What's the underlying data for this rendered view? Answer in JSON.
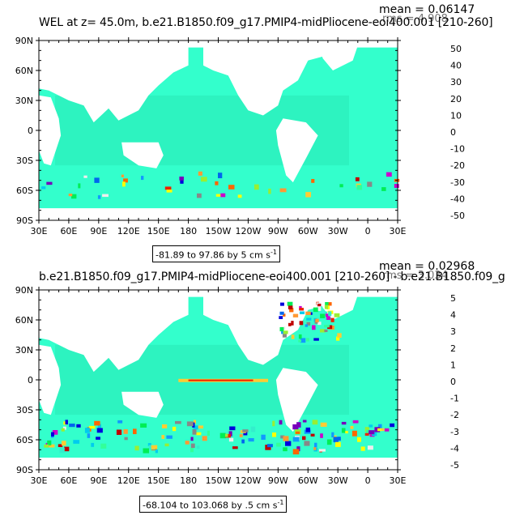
{
  "panels": [
    {
      "title": "WEL at z=  45.0m, b.e21.B1850.f09_g17.PMIP4-midPliocene-eoi400.001 [210-260]",
      "mean_text": "mean = 0.06147",
      "rms_text": "rms = 4.908",
      "range_text": "-81.89 to 97.86 by 5 cm s",
      "range_superscript": "-1",
      "colorbar_labels": [
        "50",
        "40",
        "30",
        "20",
        "10",
        "0",
        "-10",
        "-20",
        "-30",
        "-40",
        "-50"
      ]
    },
    {
      "title": "b.e21.B1850.f09_g17.PMIP4-midPliocene-eoi400.001 [210-260] - b.e21.B1850.f09_g",
      "mean_text": "mean = 0.02968",
      "rms_text": "rms = 3.034",
      "range_text": "-68.104 to 103.068 by .5 cm s",
      "range_superscript": "-1",
      "colorbar_labels": [
        "5",
        "4",
        "3",
        "2",
        "1",
        "0",
        "-1",
        "-2",
        "-3",
        "-4",
        "-5"
      ]
    }
  ],
  "lat_labels": [
    "90N",
    "60N",
    "30N",
    "0",
    "30S",
    "60S",
    "90S"
  ],
  "lon_labels": [
    "30E",
    "60E",
    "90E",
    "120E",
    "150E",
    "180",
    "150W",
    "120W",
    "90W",
    "60W",
    "30W",
    "0",
    "30E"
  ],
  "colors": {
    "colorbar": [
      "#c00000",
      "#ee2000",
      "#ff6600",
      "#ff9933",
      "#ffcc33",
      "#ffff00",
      "#99ee33",
      "#00ee55",
      "#33ff99",
      "#33eecc",
      "#00ccee",
      "#1199ff",
      "#0066ee",
      "#0000dd",
      "#7700bb",
      "#cc00cc",
      "#eeeeee",
      "#888888"
    ],
    "ocean": "#33ffcc",
    "ocean_deep": "#22ddaa",
    "land": "#ffffff"
  }
}
